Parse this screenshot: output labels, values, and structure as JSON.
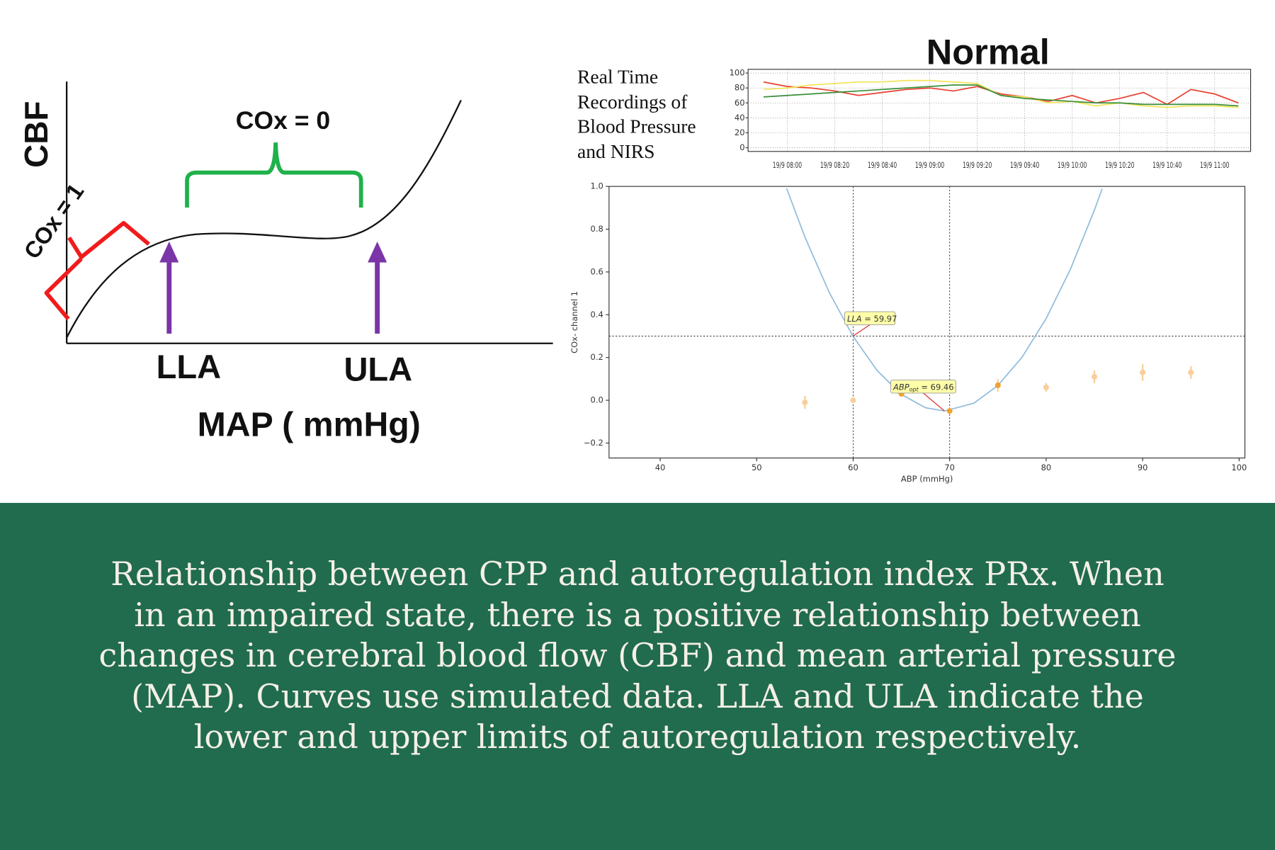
{
  "diagram": {
    "y_label": "CBF",
    "x_label": "MAP ( mmHg)",
    "cox1_label": "COx = 1",
    "cox0_label": "COx = 0",
    "lla_label": "LLA",
    "ula_label": "ULA"
  },
  "title": "Normal",
  "recordings_label": "Real Time Recordings of Blood Pressure and NIRS",
  "chart_data": [
    {
      "type": "line",
      "categories": [
        null,
        "19/9 08:00",
        null,
        "19/9 08:20",
        null,
        "19/9 08:40",
        null,
        "19/9 09:00",
        null,
        "19/9 09:20",
        null,
        "19/9 09:40",
        null,
        "19/9 10:00",
        null,
        "19/9 10:20",
        null,
        "19/9 10:40",
        null,
        "19/9 11:00",
        null
      ],
      "series": [
        {
          "color": "#e8402f",
          "values": [
            88,
            82,
            80,
            76,
            70,
            74,
            78,
            80,
            76,
            82,
            72,
            68,
            62,
            70,
            60,
            66,
            74,
            58,
            78,
            72,
            60
          ]
        },
        {
          "color": "#f2e55c",
          "values": [
            78,
            80,
            84,
            86,
            88,
            88,
            90,
            90,
            88,
            86,
            70,
            68,
            60,
            62,
            56,
            60,
            56,
            54,
            56,
            56,
            54
          ]
        },
        {
          "color": "#3a8f3a",
          "values": [
            68,
            70,
            72,
            74,
            76,
            78,
            80,
            82,
            84,
            84,
            70,
            66,
            64,
            62,
            60,
            60,
            58,
            58,
            58,
            58,
            56
          ]
        }
      ],
      "ylim": [
        -5,
        105
      ],
      "yticks": [
        0,
        20,
        40,
        60,
        80,
        100
      ],
      "grid": true
    },
    {
      "type": "scatter",
      "x_label": "ABP (mmHg)",
      "y_label": "COx- channel 1",
      "x": [
        55,
        60,
        65,
        70,
        75,
        80,
        85,
        90,
        95
      ],
      "values": [
        -0.01,
        0.0,
        0.03,
        -0.05,
        0.07,
        0.06,
        0.11,
        0.13,
        0.13
      ],
      "errors": [
        0.03,
        0.01,
        0.01,
        0.01,
        0.03,
        0.02,
        0.03,
        0.04,
        0.03
      ],
      "point_colors": [
        "#f8cf9c",
        "#f8cf9c",
        "#f0a22e",
        "#f0a22e",
        "#f0a22e",
        "#f8cf9c",
        "#f8cf9c",
        "#f8cf9c",
        "#f8cf9c"
      ],
      "fit": {
        "color": "#8fbcdc",
        "x": [
          53.1,
          55,
          57.5,
          60,
          62.5,
          65,
          67.5,
          69.46,
          72.5,
          75,
          77.5,
          80,
          82.5,
          85,
          85.8
        ],
        "values": [
          0.991,
          0.763,
          0.506,
          0.298,
          0.138,
          0.027,
          -0.035,
          -0.05,
          -0.014,
          0.069,
          0.201,
          0.382,
          0.611,
          0.889,
          0.989
        ]
      },
      "vlines": [
        60,
        70
      ],
      "hline": 0.3,
      "annotations": [
        {
          "name": "LLA",
          "text": " = 59.97",
          "x": 59.97,
          "y": 0.3
        },
        {
          "name": "ABP",
          "subscript": "opt",
          "text": " = 69.46",
          "x": 69.46,
          "y": -0.05
        }
      ],
      "xlim": [
        34.7,
        100.6
      ],
      "ylim": [
        -0.27,
        1.0
      ],
      "xticks": [
        40,
        50,
        60,
        70,
        80,
        90,
        100
      ],
      "yticks": [
        {
          "value": -0.2,
          "label": "−0.2"
        },
        {
          "value": 0,
          "label": "0.0"
        },
        0.2,
        0.4,
        0.6,
        0.8,
        {
          "value": 1,
          "label": "1.0"
        }
      ]
    }
  ],
  "caption": "Relationship between CPP and autoregulation index PRx. When in an impaired state, there is a positive relationship between changes in cerebral blood flow (CBF) and mean arterial pressure (MAP). Curves use simulated data. LLA and ULA indicate the lower and upper limits of autoregulation respectively."
}
